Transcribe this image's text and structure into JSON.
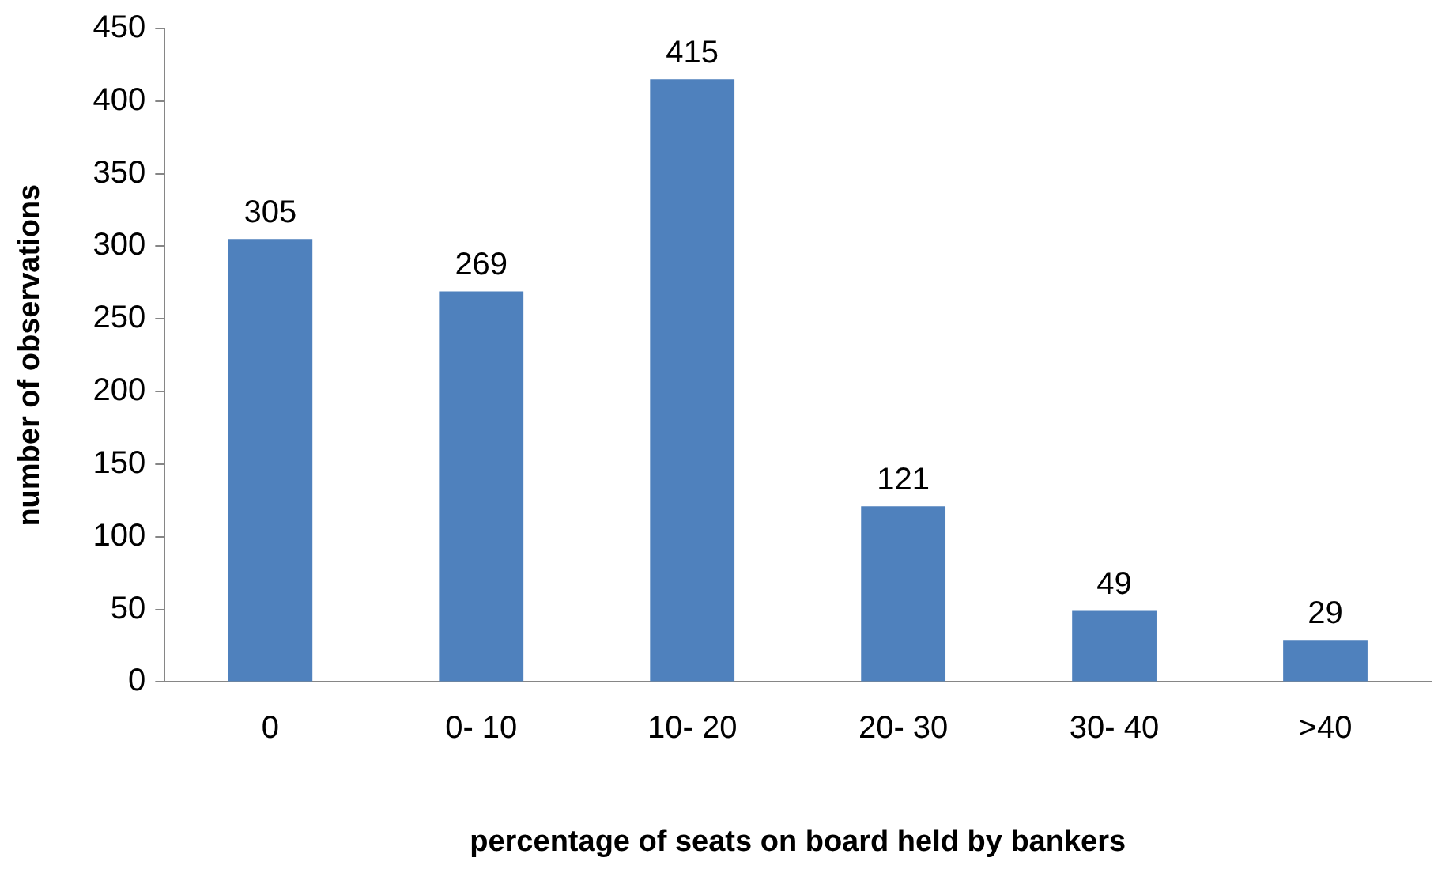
{
  "chart_data": {
    "type": "bar",
    "xlabel": "percentage of seats on board held by bankers",
    "ylabel": "number of observations",
    "categories": [
      "0",
      "0- 10",
      "10- 20",
      "20- 30",
      "30- 40",
      ">40"
    ],
    "values": [
      305,
      269,
      415,
      121,
      49,
      29
    ],
    "color": "#4f81bd",
    "ylim": [
      0,
      450
    ],
    "yticks": [
      0,
      50,
      100,
      150,
      200,
      250,
      300,
      350,
      400,
      450
    ],
    "grid": false,
    "legend": false,
    "data_labels": true
  }
}
